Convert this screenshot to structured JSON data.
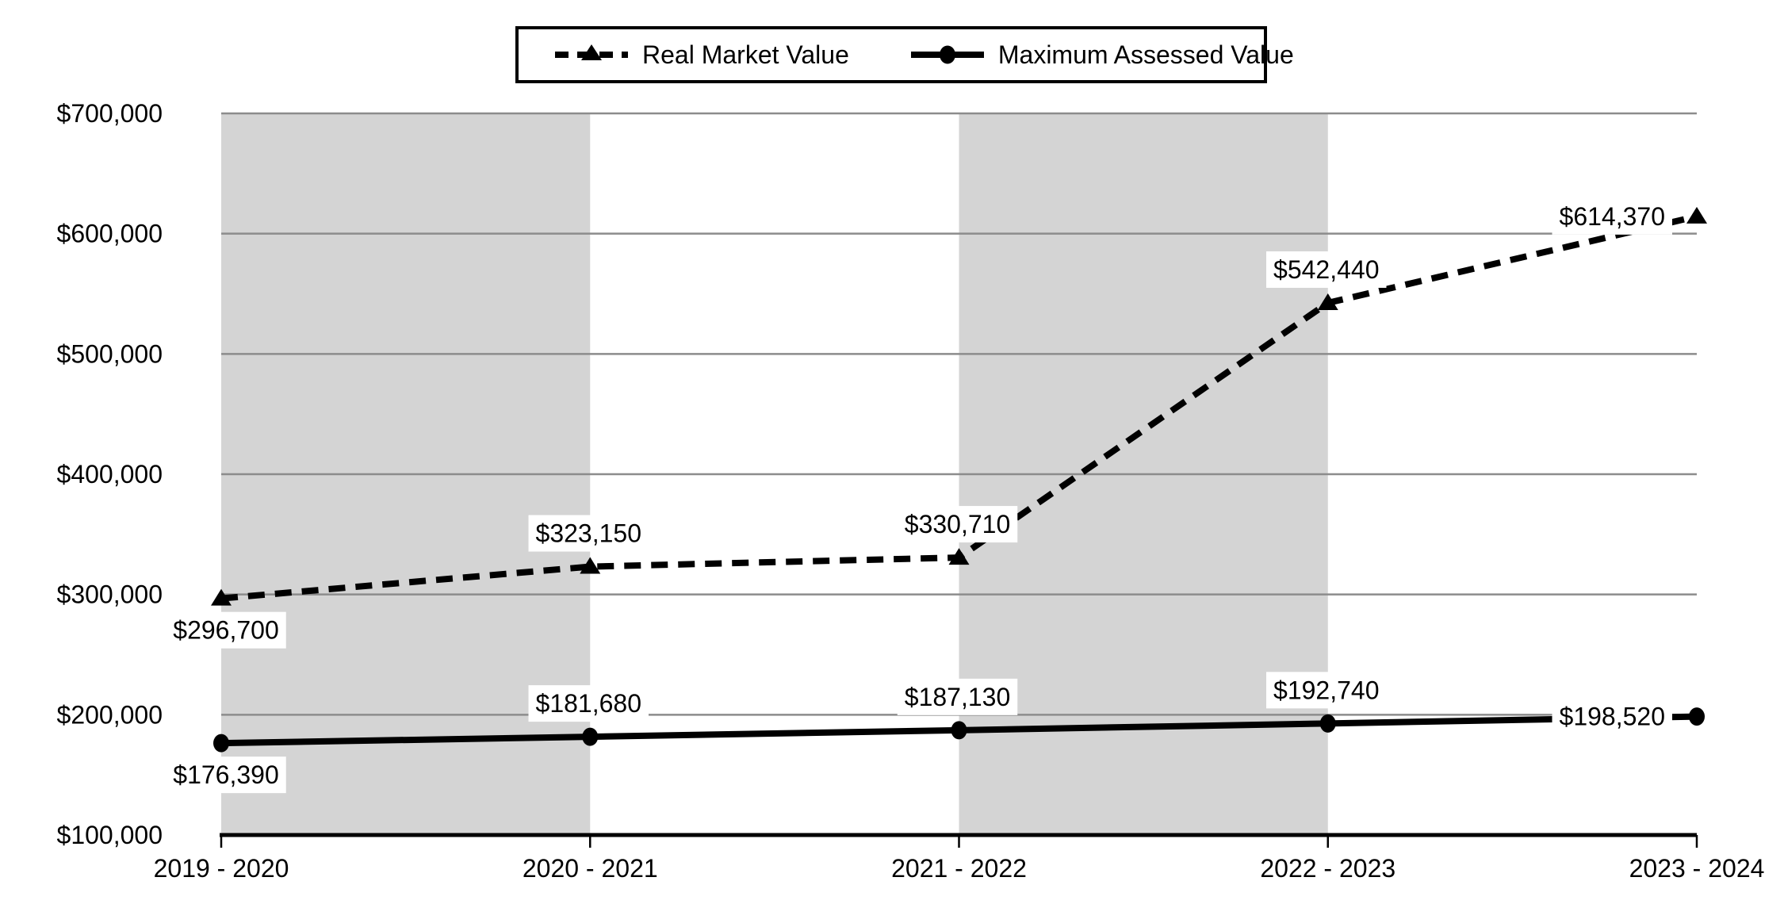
{
  "chart_data": {
    "type": "line",
    "title": "",
    "xlabel": "",
    "ylabel": "",
    "categories": [
      "2019 - 2020",
      "2020 - 2021",
      "2021 - 2022",
      "2022 - 2023",
      "2023 - 2024"
    ],
    "series": [
      {
        "name": "Real Market Value",
        "line_style": "dashed",
        "marker": "triangle",
        "values": [
          296700,
          323150,
          330710,
          542440,
          614370
        ],
        "data_labels": [
          "$296,700",
          "$323,150",
          "$330,710",
          "$542,440",
          "$614,370"
        ],
        "label_positions": [
          "below",
          "above",
          "above",
          "above",
          "left"
        ]
      },
      {
        "name": "Maximum Assessed Value",
        "line_style": "solid",
        "marker": "circle",
        "values": [
          176390,
          181680,
          187130,
          192740,
          198520
        ],
        "data_labels": [
          "$176,390",
          "$181,680",
          "$187,130",
          "$192,740",
          "$198,520"
        ],
        "label_positions": [
          "below",
          "above",
          "above",
          "above",
          "left"
        ]
      }
    ],
    "y_axis": {
      "min": 100000,
      "max": 700000,
      "step": 100000,
      "tick_labels": [
        "$100,000",
        "$200,000",
        "$300,000",
        "$400,000",
        "$500,000",
        "$600,000",
        "$700,000"
      ]
    },
    "shaded_band_category_spans": [
      [
        0,
        1
      ],
      [
        2,
        3
      ]
    ],
    "legend_position": "top",
    "grid": true,
    "colors": {
      "series": "#000000",
      "band": "#d4d4d4",
      "gridline": "#8c8c8c",
      "axis": "#000000",
      "background": "#ffffff",
      "label_background": "#ffffff",
      "text": "#000000"
    }
  }
}
